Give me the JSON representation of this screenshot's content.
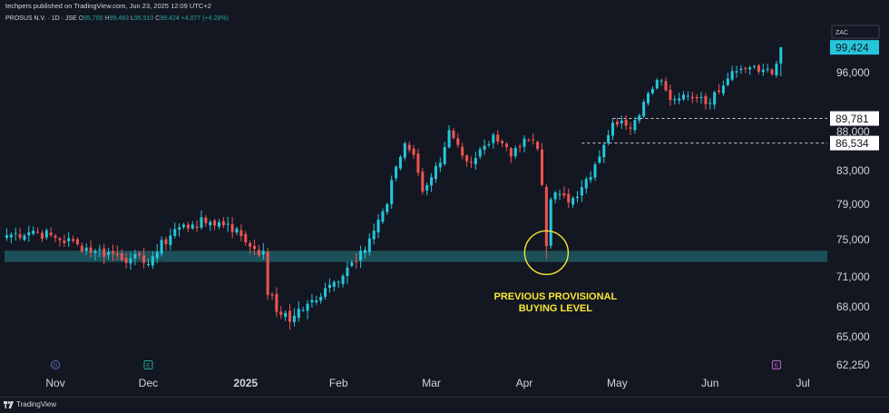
{
  "header": {
    "publisher": "techpers published on TradingView.com, Jun 23, 2025 12:09 UTC+2"
  },
  "symbol": {
    "title": "PROSUS N.V. · 1D · JSE",
    "open_label": "O",
    "open": "95,700",
    "high_label": "H",
    "high": "99,483",
    "low_label": "L",
    "low": "95,510",
    "close_label": "C",
    "close": "99,424",
    "change": "+4,077 (+4.28%)",
    "currency": "ZAC"
  },
  "colors": {
    "background": "#131722",
    "up": "#26c6da",
    "down": "#ef5350",
    "zone": "#1e5a63",
    "annotation": "#f7e733",
    "price_badge": "#26c6da"
  },
  "annotation": {
    "text_line1": "PREVIOUS PROVISIONAL",
    "text_line2": "BUYING LEVEL"
  },
  "footer": {
    "brand": "TradingView"
  },
  "chart_data": {
    "type": "candlestick",
    "title": "",
    "ylim": [
      61500,
      100500
    ],
    "y_ticks": [
      "96,000",
      "88,000",
      "83,000",
      "79,000",
      "75,000",
      "71,000",
      "68,000",
      "65,000",
      "62,250"
    ],
    "y_tick_values": [
      96000,
      88000,
      83000,
      79000,
      75000,
      71000,
      68000,
      65000,
      62250
    ],
    "x_ticks": [
      "Nov",
      "Dec",
      "2025",
      "Feb",
      "Mar",
      "Apr",
      "May",
      "Jun",
      "Jul"
    ],
    "x_tick_sessions": [
      11,
      32,
      54,
      75,
      96,
      117,
      138,
      159,
      180
    ],
    "sessions_total": 186,
    "event_markers": [
      {
        "label": "D",
        "session": 11,
        "color": "#5c6bc0"
      },
      {
        "label": "E",
        "session": 32,
        "color": "#26a69a"
      },
      {
        "label": "E",
        "session": 174,
        "color": "#ba68c8"
      }
    ],
    "current_price": {
      "value": 99424,
      "label": "99,424"
    },
    "levels": [
      {
        "value": 89781,
        "label": "89,781",
        "from_session": 137
      },
      {
        "value": 86534,
        "label": "86,534",
        "from_session": 130
      }
    ],
    "support_zone": {
      "low": 72600,
      "high": 73800
    },
    "circle_marker": {
      "session": 122,
      "value": 73600
    },
    "anchors": [
      [
        0,
        75500
      ],
      [
        6,
        76000
      ],
      [
        11,
        75200
      ],
      [
        16,
        74500
      ],
      [
        20,
        73800
      ],
      [
        24,
        73500
      ],
      [
        28,
        73000
      ],
      [
        31,
        72500
      ],
      [
        34,
        73700
      ],
      [
        38,
        76200
      ],
      [
        42,
        76700
      ],
      [
        46,
        77000
      ],
      [
        50,
        76800
      ],
      [
        53,
        75400
      ],
      [
        56,
        74000
      ],
      [
        58,
        73800
      ],
      [
        59,
        69200
      ],
      [
        62,
        67200
      ],
      [
        64,
        66500
      ],
      [
        66,
        67800
      ],
      [
        68,
        68300
      ],
      [
        71,
        69000
      ],
      [
        74,
        70500
      ],
      [
        77,
        72000
      ],
      [
        80,
        73800
      ],
      [
        83,
        76000
      ],
      [
        86,
        79000
      ],
      [
        88,
        83500
      ],
      [
        90,
        86500
      ],
      [
        92,
        85000
      ],
      [
        94,
        80500
      ],
      [
        96,
        82200
      ],
      [
        98,
        84000
      ],
      [
        100,
        88200
      ],
      [
        102,
        86300
      ],
      [
        104,
        84200
      ],
      [
        106,
        84600
      ],
      [
        108,
        86200
      ],
      [
        110,
        87600
      ],
      [
        112,
        86500
      ],
      [
        114,
        84800
      ],
      [
        116,
        86000
      ],
      [
        118,
        86900
      ],
      [
        120,
        85800
      ],
      [
        121,
        81300
      ],
      [
        122,
        74300
      ],
      [
        123,
        79600
      ],
      [
        125,
        80200
      ],
      [
        127,
        79200
      ],
      [
        129,
        79900
      ],
      [
        131,
        82000
      ],
      [
        133,
        83800
      ],
      [
        135,
        86300
      ],
      [
        137,
        89200
      ],
      [
        139,
        89500
      ],
      [
        141,
        88400
      ],
      [
        143,
        90200
      ],
      [
        145,
        93200
      ],
      [
        147,
        95000
      ],
      [
        149,
        93600
      ],
      [
        151,
        92400
      ],
      [
        153,
        93000
      ],
      [
        155,
        92500
      ],
      [
        157,
        92700
      ],
      [
        159,
        91900
      ],
      [
        161,
        93400
      ],
      [
        163,
        95200
      ],
      [
        165,
        96200
      ],
      [
        167,
        96600
      ],
      [
        169,
        96900
      ],
      [
        171,
        96400
      ],
      [
        173,
        95800
      ],
      [
        174,
        97200
      ],
      [
        175,
        99424
      ]
    ]
  }
}
